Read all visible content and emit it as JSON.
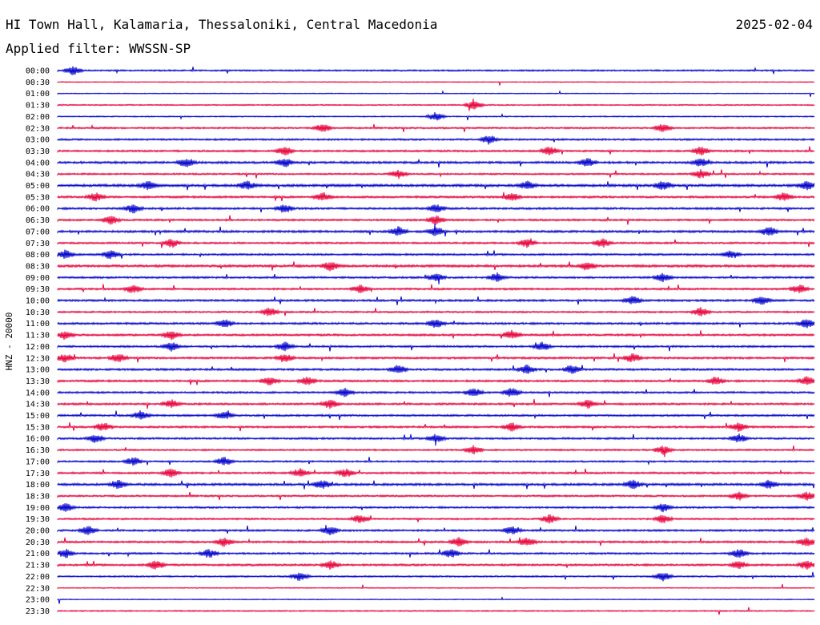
{
  "header": {
    "station": "HI Town Hall, Kalamaria, Thessaloniki, Central Macedonia",
    "date": "2025-02-04",
    "filter": "Applied filter: WWSSN-SP"
  },
  "chart_data": {
    "type": "line",
    "title": "HI Town Hall, Kalamaria, Thessaloniki, Central Macedonia",
    "subtitle": "Applied filter: WWSSN-SP",
    "ylabel": "HNZ - 20000",
    "xlabel": "",
    "colors": [
      "#0000cc",
      "#e8003a"
    ],
    "grid": false,
    "legend": "none",
    "rows": [
      {
        "time": "00:00",
        "activity": 0.4,
        "events": [
          0.02
        ]
      },
      {
        "time": "00:30",
        "activity": 0.1,
        "events": []
      },
      {
        "time": "01:00",
        "activity": 0.1,
        "events": []
      },
      {
        "time": "01:30",
        "activity": 0.25,
        "events": [
          0.55
        ]
      },
      {
        "time": "02:00",
        "activity": 0.2,
        "events": [
          0.5
        ]
      },
      {
        "time": "02:30",
        "activity": 0.45,
        "events": [
          0.35,
          0.8
        ]
      },
      {
        "time": "03:00",
        "activity": 0.5,
        "events": [
          0.57
        ]
      },
      {
        "time": "03:30",
        "activity": 0.55,
        "events": [
          0.3,
          0.65,
          0.85
        ]
      },
      {
        "time": "04:00",
        "activity": 0.7,
        "events": [
          0.17,
          0.3,
          0.7,
          0.85
        ]
      },
      {
        "time": "04:30",
        "activity": 0.45,
        "events": [
          0.45,
          0.85
        ]
      },
      {
        "time": "05:00",
        "activity": 0.8,
        "events": [
          0.12,
          0.25,
          0.62,
          0.8,
          0.99
        ]
      },
      {
        "time": "05:30",
        "activity": 0.6,
        "events": [
          0.05,
          0.35,
          0.6,
          0.96
        ]
      },
      {
        "time": "06:00",
        "activity": 0.6,
        "events": [
          0.1,
          0.3,
          0.5
        ]
      },
      {
        "time": "06:30",
        "activity": 0.55,
        "events": [
          0.07,
          0.5
        ]
      },
      {
        "time": "07:00",
        "activity": 0.7,
        "events": [
          0.45,
          0.5,
          0.94
        ]
      },
      {
        "time": "07:30",
        "activity": 0.5,
        "events": [
          0.15,
          0.62,
          0.72
        ]
      },
      {
        "time": "08:00",
        "activity": 0.55,
        "events": [
          0.01,
          0.07,
          0.89
        ]
      },
      {
        "time": "08:30",
        "activity": 0.75,
        "events": [
          0.36,
          0.7
        ]
      },
      {
        "time": "09:00",
        "activity": 0.55,
        "events": [
          0.5,
          0.58,
          0.8
        ]
      },
      {
        "time": "09:30",
        "activity": 0.55,
        "events": [
          0.1,
          0.4,
          0.98
        ]
      },
      {
        "time": "10:00",
        "activity": 0.6,
        "events": [
          0.76,
          0.93
        ]
      },
      {
        "time": "10:30",
        "activity": 0.45,
        "events": [
          0.28,
          0.85
        ]
      },
      {
        "time": "11:00",
        "activity": 0.6,
        "events": [
          0.22,
          0.5,
          0.99
        ]
      },
      {
        "time": "11:30",
        "activity": 0.6,
        "events": [
          0.01,
          0.15,
          0.6
        ]
      },
      {
        "time": "12:00",
        "activity": 0.55,
        "events": [
          0.15,
          0.3,
          0.64
        ]
      },
      {
        "time": "12:30",
        "activity": 0.6,
        "events": [
          0.01,
          0.08,
          0.3,
          0.76
        ]
      },
      {
        "time": "13:00",
        "activity": 0.6,
        "events": [
          0.45,
          0.62,
          0.68
        ]
      },
      {
        "time": "13:30",
        "activity": 0.6,
        "events": [
          0.28,
          0.33,
          0.87,
          0.99
        ]
      },
      {
        "time": "14:00",
        "activity": 0.55,
        "events": [
          0.38,
          0.55,
          0.6
        ]
      },
      {
        "time": "14:30",
        "activity": 0.6,
        "events": [
          0.15,
          0.36,
          0.7
        ]
      },
      {
        "time": "15:00",
        "activity": 0.55,
        "events": [
          0.11,
          0.22
        ]
      },
      {
        "time": "15:30",
        "activity": 0.55,
        "events": [
          0.06,
          0.6,
          0.9
        ]
      },
      {
        "time": "16:00",
        "activity": 0.55,
        "events": [
          0.05,
          0.5,
          0.9
        ]
      },
      {
        "time": "16:30",
        "activity": 0.45,
        "events": [
          0.55,
          0.8
        ]
      },
      {
        "time": "17:00",
        "activity": 0.45,
        "events": [
          0.1,
          0.22
        ]
      },
      {
        "time": "17:30",
        "activity": 0.55,
        "events": [
          0.15,
          0.32,
          0.38
        ]
      },
      {
        "time": "18:00",
        "activity": 0.7,
        "events": [
          0.08,
          0.35,
          0.76,
          0.94
        ]
      },
      {
        "time": "18:30",
        "activity": 0.5,
        "events": [
          0.9,
          0.99
        ]
      },
      {
        "time": "19:00",
        "activity": 0.5,
        "events": [
          0.01,
          0.8
        ]
      },
      {
        "time": "19:30",
        "activity": 0.45,
        "events": [
          0.4,
          0.65,
          0.8
        ]
      },
      {
        "time": "20:00",
        "activity": 0.55,
        "events": [
          0.04,
          0.36,
          0.6
        ]
      },
      {
        "time": "20:30",
        "activity": 0.6,
        "events": [
          0.22,
          0.53,
          0.62,
          0.99
        ]
      },
      {
        "time": "21:00",
        "activity": 0.5,
        "events": [
          0.01,
          0.2,
          0.52,
          0.9
        ]
      },
      {
        "time": "21:30",
        "activity": 0.6,
        "events": [
          0.13,
          0.36,
          0.9,
          0.99
        ]
      },
      {
        "time": "22:00",
        "activity": 0.4,
        "events": [
          0.32,
          0.8
        ]
      },
      {
        "time": "22:30",
        "activity": 0.15,
        "events": []
      },
      {
        "time": "23:00",
        "activity": 0.1,
        "events": []
      },
      {
        "time": "23:30",
        "activity": 0.25,
        "events": []
      }
    ]
  }
}
